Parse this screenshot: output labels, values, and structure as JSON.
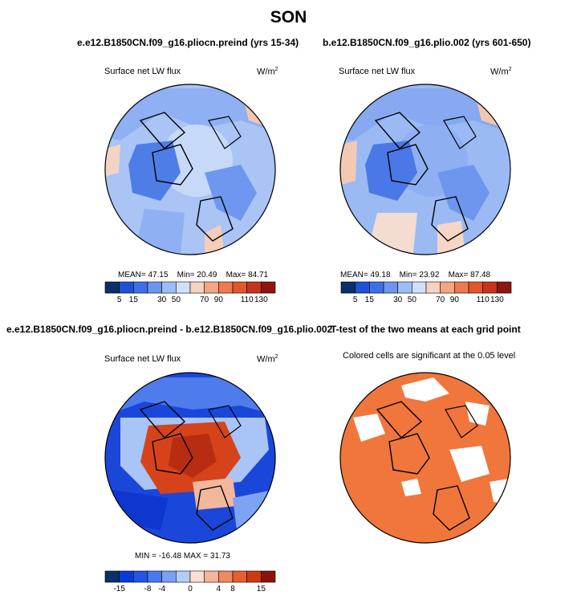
{
  "figure": {
    "title": "SON"
  },
  "panels": [
    {
      "title": "e.e12.B1850CN.f09_g16.pliocn.preind (yrs 15-34)",
      "field_label": "Surface net LW flux",
      "units": "W/m",
      "units_exp": "2",
      "stats": {
        "mean": "MEAN=  47.15",
        "min": "Min=  20.49",
        "max": "Max=  84.71"
      },
      "colorbar": {
        "colors": [
          "#08306b",
          "#1f50d8",
          "#3f6fe8",
          "#6d95f0",
          "#9dbdf6",
          "#cfe0fb",
          "#f6d2c0",
          "#f4a582",
          "#ed7a50",
          "#e2562b",
          "#c8331d",
          "#8f1510"
        ],
        "ticks": [
          "5",
          "15",
          "30",
          "50",
          "70",
          "90",
          "110",
          "130"
        ]
      }
    },
    {
      "title": "b.e12.B1850CN.f09_g16.plio.002 (yrs 601-650)",
      "field_label": "Surface net LW flux",
      "units": "W/m",
      "units_exp": "2",
      "stats": {
        "mean": "MEAN=  49.18",
        "min": "Min=  23.92",
        "max": "Max=  87.48"
      },
      "colorbar": {
        "colors": [
          "#08306b",
          "#1f50d8",
          "#3f6fe8",
          "#6d95f0",
          "#9dbdf6",
          "#cfe0fb",
          "#f6d2c0",
          "#f4a582",
          "#ed7a50",
          "#e2562b",
          "#c8331d",
          "#8f1510"
        ],
        "ticks": [
          "5",
          "15",
          "30",
          "50",
          "70",
          "90",
          "110",
          "130"
        ]
      }
    },
    {
      "title": "e.e12.B1850CN.f09_g16.pliocn.preind - b.e12.B1850CN.f09_g16.plio.002",
      "field_label": "Surface net LW flux",
      "units": "W/m",
      "units_exp": "2",
      "stats": {
        "range": "MIN = -16.48  MAX = 31.73"
      },
      "colorbar": {
        "colors": [
          "#08306b",
          "#0b3bd6",
          "#2356e6",
          "#4a78ee",
          "#7aa0f3",
          "#b4cdf8",
          "#fde0d0",
          "#f7b49a",
          "#f08860",
          "#e4602e",
          "#cc3a12",
          "#8b1408"
        ],
        "ticks": [
          "-15",
          "-8",
          "-4",
          "0",
          "4",
          "8",
          "15"
        ]
      }
    },
    {
      "title": "T-test of the two means at each grid point",
      "subtitle": "Colored cells are significant at the 0.05 level",
      "fill": "#f0763c"
    }
  ],
  "chart_data": [
    {
      "type": "heatmap",
      "projection": "north-polar-stereographic",
      "title": "e.e12.B1850CN.f09_g16.pliocn.preind (yrs 15-34)",
      "variable": "Surface net LW flux",
      "units": "W/m2",
      "mean": 47.15,
      "min": 20.49,
      "max": 84.71,
      "contour_levels": [
        5,
        10,
        15,
        20,
        30,
        40,
        50,
        60,
        70,
        80,
        90,
        100,
        110,
        120,
        130
      ]
    },
    {
      "type": "heatmap",
      "projection": "north-polar-stereographic",
      "title": "b.e12.B1850CN.f09_g16.plio.002 (yrs 601-650)",
      "variable": "Surface net LW flux",
      "units": "W/m2",
      "mean": 49.18,
      "min": 23.92,
      "max": 87.48,
      "contour_levels": [
        5,
        10,
        15,
        20,
        30,
        40,
        50,
        60,
        70,
        80,
        90,
        100,
        110,
        120,
        130
      ]
    },
    {
      "type": "heatmap",
      "projection": "north-polar-stereographic",
      "title": "e.e12.B1850CN.f09_g16.pliocn.preind - b.e12.B1850CN.f09_g16.plio.002",
      "variable": "Surface net LW flux difference",
      "units": "W/m2",
      "min": -16.48,
      "max": 31.73,
      "contour_levels": [
        -15,
        -12,
        -8,
        -6,
        -4,
        -2,
        0,
        2,
        4,
        6,
        8,
        12,
        15
      ]
    },
    {
      "type": "heatmap",
      "projection": "north-polar-stereographic",
      "title": "T-test of the two means at each grid point",
      "note": "Colored cells are significant at the 0.05 level",
      "significance_level": 0.05
    }
  ]
}
